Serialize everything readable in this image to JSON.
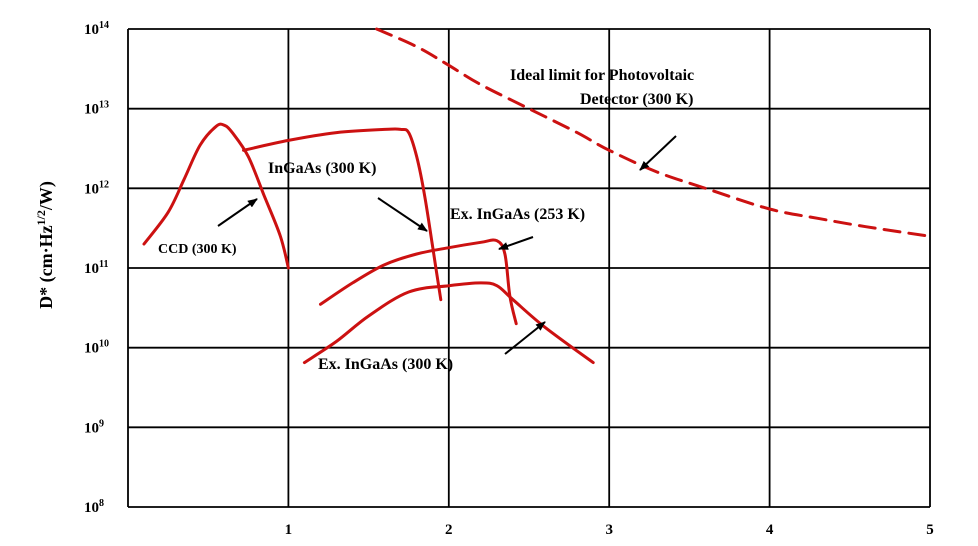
{
  "chart_data": {
    "type": "line",
    "xlim": [
      0,
      5
    ],
    "ylog_lim": [
      8,
      14
    ],
    "y_scale": "log",
    "grid": true,
    "x_ticks": [
      "1",
      "2",
      "3",
      "4",
      "5"
    ],
    "y_ticks": [
      {
        "base": "10",
        "exp": "8"
      },
      {
        "base": "10",
        "exp": "9"
      },
      {
        "base": "10",
        "exp": "10"
      },
      {
        "base": "10",
        "exp": "11"
      },
      {
        "base": "10",
        "exp": "12"
      },
      {
        "base": "10",
        "exp": "13"
      },
      {
        "base": "10",
        "exp": "14"
      }
    ],
    "ylabel": {
      "main": "D* (cm·Hz",
      "sup": "1/2",
      "tail": "/W)"
    },
    "line_color": "#cc1111",
    "series": [
      {
        "name": "CCD (300 K)",
        "style": "solid",
        "x": [
          0.1,
          0.25,
          0.35,
          0.45,
          0.55,
          0.6,
          0.65,
          0.75,
          0.85,
          0.95,
          1.0
        ],
        "y": [
          200000000000.0,
          500000000000.0,
          1300000000000.0,
          3500000000000.0,
          6000000000000.0,
          6200000000000.0,
          5000000000000.0,
          2500000000000.0,
          800000000000.0,
          250000000000.0,
          100000000000.0
        ]
      },
      {
        "name": "InGaAs (300 K)",
        "style": "solid",
        "x": [
          0.72,
          1.0,
          1.3,
          1.6,
          1.7,
          1.75,
          1.8,
          1.85,
          1.9,
          1.95
        ],
        "y": [
          3000000000000.0,
          4000000000000.0,
          5000000000000.0,
          5500000000000.0,
          5500000000000.0,
          5000000000000.0,
          2500000000000.0,
          800000000000.0,
          180000000000.0,
          40000000000.0
        ]
      },
      {
        "name": "Ex. InGaAs (253 K)",
        "style": "solid",
        "x": [
          1.2,
          1.4,
          1.6,
          1.8,
          2.0,
          2.2,
          2.3,
          2.35,
          2.38,
          2.42
        ],
        "y": [
          35000000000.0,
          65000000000.0,
          110000000000.0,
          150000000000.0,
          180000000000.0,
          210000000000.0,
          220000000000.0,
          150000000000.0,
          45000000000.0,
          20000000000.0
        ]
      },
      {
        "name": "Ex. InGaAs (300 K)",
        "style": "solid",
        "x": [
          1.1,
          1.3,
          1.5,
          1.75,
          2.0,
          2.2,
          2.3,
          2.4,
          2.6,
          2.9
        ],
        "y": [
          6500000000.0,
          12000000000.0,
          25000000000.0,
          50000000000.0,
          60000000000.0,
          65000000000.0,
          60000000000.0,
          40000000000.0,
          18000000000.0,
          6500000000.0
        ]
      },
      {
        "name": "Ideal limit for Photovoltaic Detector (300 K)",
        "style": "dashed",
        "x": [
          1.55,
          1.8,
          2.0,
          2.2,
          2.5,
          2.8,
          3.0,
          3.3,
          3.6,
          4.0,
          4.3,
          4.6,
          5.0
        ],
        "y": [
          100000000000000.0,
          60000000000000.0,
          35000000000000.0,
          20000000000000.0,
          10000000000000.0,
          5000000000000.0,
          3000000000000.0,
          1600000000000.0,
          1000000000000.0,
          550000000000.0,
          420000000000.0,
          330000000000.0,
          250000000000.0
        ]
      }
    ],
    "annotations": [
      {
        "id": "ccd",
        "text": "CCD (300 K)"
      },
      {
        "id": "ingaas300",
        "text": "InGaAs (300 K)"
      },
      {
        "id": "exingaas253",
        "text": "Ex. InGaAs (253 K)"
      },
      {
        "id": "exingaas300",
        "text": "Ex. InGaAs (300 K)"
      },
      {
        "id": "ideal1",
        "text": "Ideal limit for Photovoltaic"
      },
      {
        "id": "ideal2",
        "text": "Detector (300 K)"
      }
    ]
  }
}
